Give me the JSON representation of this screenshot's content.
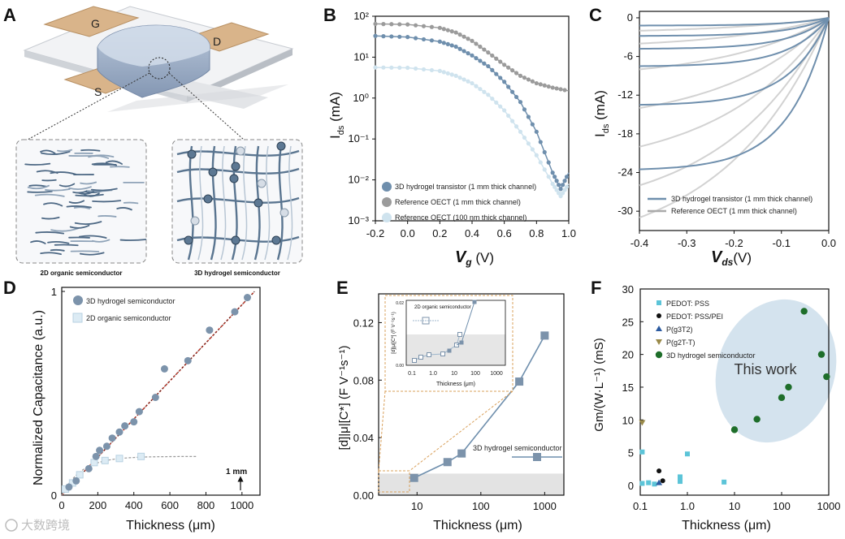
{
  "panels": {
    "A": {
      "label": "A",
      "electrodes": [
        "G",
        "D",
        "S"
      ],
      "caption_left": "2D organic semiconductor",
      "caption_right": "3D hydrogel semiconductor"
    },
    "B": {
      "label": "B",
      "xlabel_var": "V",
      "xlabel_sub": "g",
      "xlabel_unit": " (V)",
      "ylabel_main": "I",
      "ylabel_sub": "ds",
      "ylabel_unit": " (mA)"
    },
    "C": {
      "label": "C",
      "xlabel_var": "V",
      "xlabel_sub": "ds",
      "xlabel_unit": "(V)",
      "ylabel_main": "I",
      "ylabel_sub": "ds",
      "ylabel_unit": " (mA)"
    },
    "D": {
      "label": "D",
      "ylabel": "Normalized Capacitance (a.u.)",
      "xlabel": "Thickness (μm)",
      "scale_bar": "1 mm"
    },
    "E": {
      "label": "E",
      "ylabel": "[d]|μ|[C*] (F V⁻¹s⁻¹)",
      "xlabel": "Thickness (μm)",
      "series_label": "3D hydrogel semiconductor",
      "inset_ylabel": "[d]|μ|[C*] (F V⁻¹s⁻¹)",
      "inset_xlabel": "Thickness (μm)",
      "inset_legend": "2D organic semiconductor",
      "inset_ytop": "0.02",
      "inset_ybottom": "0.00"
    },
    "F": {
      "label": "F",
      "ylabel": "Gm/(W·L⁻¹) (mS)",
      "xlabel": "Thickness (μm)",
      "annotation": "This work"
    }
  },
  "watermark": "大数跨境",
  "colors": {
    "blue": "#6f8fad",
    "grey": "#9b9b9b",
    "lightblue": "#cfe3ee",
    "green": "#1e6e2a",
    "cyan": "#5cc4d8",
    "navy": "#2b5aa0",
    "olive": "#9a8a4a",
    "ellipse": "#c9dcea"
  },
  "chart_data": [
    {
      "id": "B",
      "type": "line",
      "title": "",
      "x_scale": "linear",
      "y_scale": "log",
      "xlim": [
        -0.2,
        1.0
      ],
      "ylim": [
        0.001,
        100
      ],
      "xticks": [
        "-0.2",
        "0.0",
        "0.2",
        "0.4",
        "0.6",
        "0.8",
        "1.0"
      ],
      "yticks": [
        "10⁻³",
        "10⁻²",
        "10⁻¹",
        "10⁰",
        "10¹",
        "10²"
      ],
      "series": [
        {
          "name": "3D hydrogel transistor (1 mm thick channel)",
          "x": [
            -0.2,
            0.0,
            0.2,
            0.3,
            0.4,
            0.5,
            0.6,
            0.7,
            0.8,
            0.9,
            0.95,
            1.0
          ],
          "y": [
            33,
            31,
            24,
            18,
            11,
            6,
            2.5,
            0.8,
            0.15,
            0.015,
            0.006,
            0.015
          ]
        },
        {
          "name": "Reference OECT (1 mm thick channel)",
          "x": [
            -0.2,
            0.0,
            0.2,
            0.3,
            0.4,
            0.5,
            0.6,
            0.7,
            0.8,
            0.9,
            1.0
          ],
          "y": [
            65,
            63,
            52,
            40,
            25,
            13,
            6.5,
            3.5,
            2.3,
            1.8,
            1.5
          ]
        },
        {
          "name": "Reference OECT (100 nm thick channel)",
          "x": [
            -0.2,
            0.0,
            0.2,
            0.3,
            0.4,
            0.5,
            0.6,
            0.7,
            0.8,
            0.9,
            0.95,
            1.0
          ],
          "y": [
            5.6,
            5.5,
            4.6,
            3.5,
            2.3,
            1.2,
            0.5,
            0.15,
            0.04,
            0.008,
            0.004,
            0.008
          ]
        }
      ]
    },
    {
      "id": "C",
      "type": "line",
      "title": "",
      "xlim": [
        -0.4,
        0.0
      ],
      "ylim": [
        -33,
        1
      ],
      "xticks": [
        "-0.4",
        "-0.3",
        "-0.2",
        "-0.1",
        "0.0"
      ],
      "yticks": [
        "0",
        "-6",
        "-12",
        "-18",
        "-24",
        "-30"
      ],
      "series": [
        {
          "name": "3D hydrogel transistor (1 mm thick channel)",
          "saturation_currents": [
            -1.2,
            -2.8,
            -4.8,
            -7.5,
            -13.5,
            -23.5
          ]
        },
        {
          "name": "Reference OECT (1 mm thick channel)",
          "saturation_currents": [
            -2,
            -4,
            -8,
            -14,
            -20,
            -26,
            -31
          ]
        }
      ]
    },
    {
      "id": "D",
      "type": "scatter",
      "title": "",
      "xlim": [
        0,
        1100
      ],
      "ylim": [
        0,
        1.02
      ],
      "xticks": [
        "0",
        "200",
        "400",
        "600",
        "800",
        "1000"
      ],
      "yticks": [
        "0",
        "1"
      ],
      "series": [
        {
          "name": "3D hydrogel semiconductor",
          "x": [
            40,
            80,
            150,
            190,
            210,
            250,
            280,
            320,
            350,
            400,
            430,
            520,
            570,
            700,
            820,
            960,
            1030
          ],
          "y": [
            0.04,
            0.07,
            0.13,
            0.19,
            0.22,
            0.24,
            0.28,
            0.31,
            0.34,
            0.36,
            0.41,
            0.48,
            0.62,
            0.66,
            0.81,
            0.9,
            0.97
          ]
        },
        {
          "name": "2D organic semiconductor",
          "x": [
            20,
            60,
            100,
            180,
            240,
            320,
            440
          ],
          "y": [
            0.03,
            0.06,
            0.1,
            0.16,
            0.17,
            0.18,
            0.19
          ]
        }
      ]
    },
    {
      "id": "E",
      "type": "line",
      "title": "",
      "x_scale": "log",
      "xlim": [
        2.5,
        2000
      ],
      "ylim": [
        0,
        0.14
      ],
      "xticks": [
        "10",
        "100",
        "1000"
      ],
      "yticks": [
        "0.00",
        "0.04",
        "0.08",
        "0.12"
      ],
      "series": [
        {
          "name": "3D hydrogel semiconductor",
          "x": [
            9,
            30,
            50,
            400,
            1000
          ],
          "y": [
            0.012,
            0.023,
            0.029,
            0.079,
            0.111
          ]
        }
      ]
    },
    {
      "id": "F",
      "type": "scatter",
      "title": "",
      "x_scale": "log",
      "xlim": [
        0.1,
        1000
      ],
      "ylim": [
        -1.5,
        30
      ],
      "xticks": [
        "0.1",
        "1.0",
        "10",
        "100",
        "1000"
      ],
      "yticks": [
        "0",
        "5",
        "10",
        "15",
        "20",
        "25",
        "30"
      ],
      "series": [
        {
          "name": "PEDOT: PSS",
          "x": [
            0.11,
            0.11,
            0.15,
            0.2,
            0.7,
            0.7,
            0.7,
            1.0,
            6.0
          ],
          "y": [
            5.1,
            0.3,
            0.4,
            0.2,
            1.3,
            0.9,
            0.6,
            4.8,
            0.5
          ]
        },
        {
          "name": "PEDOT: PSS/PEI",
          "x": [
            0.25,
            0.3
          ],
          "y": [
            2.2,
            0.7
          ]
        },
        {
          "name": "P(g3T2)",
          "x": [
            0.25
          ],
          "y": [
            0.4
          ]
        },
        {
          "name": "P(g2T-T)",
          "x": [
            0.11
          ],
          "y": [
            9.6
          ]
        },
        {
          "name": "3D hydrogel semiconductor",
          "x": [
            10,
            30,
            100,
            140,
            300,
            700,
            900
          ],
          "y": [
            8.5,
            10.1,
            13.4,
            15.0,
            26.6,
            20.0,
            16.6
          ]
        }
      ]
    }
  ]
}
